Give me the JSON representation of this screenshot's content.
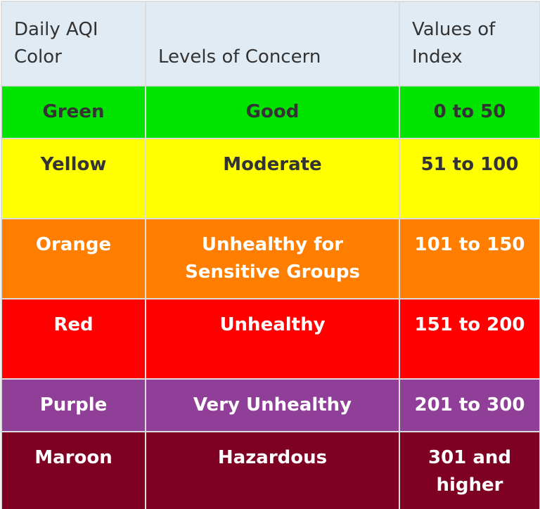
{
  "header": {
    "col1": "Daily AQI Color",
    "col2": "Levels of Concern",
    "col3": "Values of Index"
  },
  "rows": [
    {
      "color_name": "Green",
      "level": "Good",
      "range": "0 to 50",
      "bg": "#00e400",
      "fg": "#333333"
    },
    {
      "color_name": "Yellow",
      "level": "Moderate",
      "range": "51 to 100",
      "bg": "#ffff00",
      "fg": "#333333"
    },
    {
      "color_name": "Orange",
      "level": "Unhealthy for Sensitive Groups",
      "range": "101 to 150",
      "bg": "#ff7e00",
      "fg": "#ffffff"
    },
    {
      "color_name": "Red",
      "level": "Unhealthy",
      "range": "151 to 200",
      "bg": "#ff0000",
      "fg": "#ffffff"
    },
    {
      "color_name": "Purple",
      "level": "Very Unhealthy",
      "range": "201 to 300",
      "bg": "#8f3f97",
      "fg": "#ffffff"
    },
    {
      "color_name": "Maroon",
      "level": "Hazardous",
      "range": "301 and higher",
      "bg": "#7e0023",
      "fg": "#ffffff"
    }
  ]
}
